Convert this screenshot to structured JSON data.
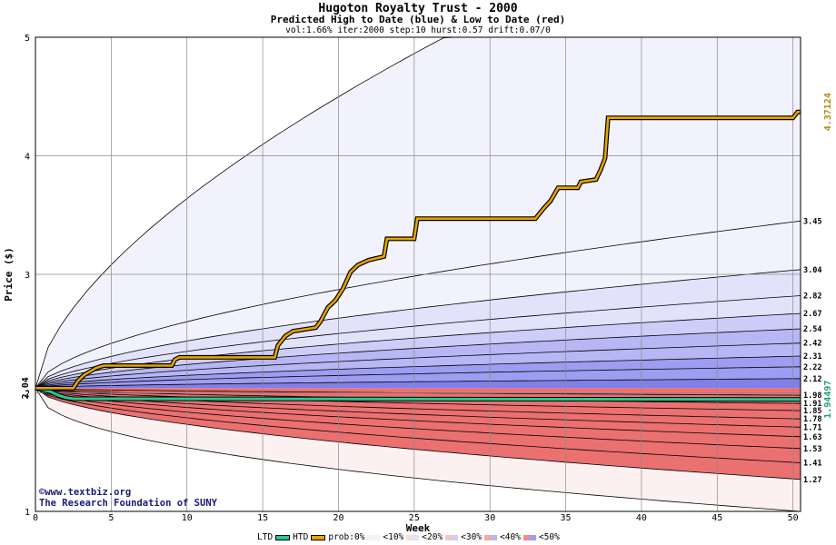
{
  "chart_data": {
    "type": "area",
    "title": "Hugoton Royalty Trust - 2000",
    "subtitle": "Predicted High to Date (blue) &  Low to Date (red)",
    "params": "vol:1.66% iter:2000 step:10 hurst:0.57 drift:0.07/0",
    "xlabel": "Week",
    "ylabel": "Price ($)",
    "xlim": [
      0,
      50.5
    ],
    "ylim": [
      1,
      5
    ],
    "x_ticks": [
      "0",
      "5",
      "10",
      "15",
      "20",
      "25",
      "30",
      "35",
      "40",
      "45",
      "50"
    ],
    "y_ticks": [
      "1",
      "2",
      "3",
      "4",
      "5"
    ],
    "start_price": "2.04",
    "grid": true,
    "high_band_levels": [
      {
        "label": "3.45",
        "value": 3.45
      },
      {
        "label": "3.04",
        "value": 3.04
      },
      {
        "label": "2.82",
        "value": 2.82
      },
      {
        "label": "2.67",
        "value": 2.67
      },
      {
        "label": "2.54",
        "value": 2.54
      },
      {
        "label": "2.42",
        "value": 2.42
      },
      {
        "label": "2.31",
        "value": 2.31
      },
      {
        "label": "2.22",
        "value": 2.22
      },
      {
        "label": "2.12",
        "value": 2.12
      }
    ],
    "low_band_levels": [
      {
        "label": "1.98",
        "value": 1.98
      },
      {
        "label": "1.91",
        "value": 1.91
      },
      {
        "label": "1.85",
        "value": 1.85
      },
      {
        "label": "1.78",
        "value": 1.78
      },
      {
        "label": "1.71",
        "value": 1.71
      },
      {
        "label": "1.63",
        "value": 1.63
      },
      {
        "label": "1.53",
        "value": 1.53
      },
      {
        "label": "1.41",
        "value": 1.41
      },
      {
        "label": "1.27",
        "value": 1.27
      }
    ],
    "outer_high": 5.0,
    "outer_low": 1.0,
    "htd_series": {
      "name": "HTD",
      "final_label": "4.37124",
      "points": [
        [
          0,
          2.04
        ],
        [
          2.5,
          2.04
        ],
        [
          2.8,
          2.1
        ],
        [
          3.2,
          2.15
        ],
        [
          3.6,
          2.18
        ],
        [
          4.0,
          2.21
        ],
        [
          4.5,
          2.23
        ],
        [
          9,
          2.23
        ],
        [
          9.2,
          2.28
        ],
        [
          9.5,
          2.3
        ],
        [
          15.8,
          2.3
        ],
        [
          16,
          2.4
        ],
        [
          16.5,
          2.48
        ],
        [
          17,
          2.52
        ],
        [
          18.5,
          2.55
        ],
        [
          18.8,
          2.6
        ],
        [
          19.3,
          2.72
        ],
        [
          19.8,
          2.78
        ],
        [
          20.3,
          2.88
        ],
        [
          20.8,
          3.02
        ],
        [
          21.3,
          3.08
        ],
        [
          22,
          3.12
        ],
        [
          23,
          3.15
        ],
        [
          23.2,
          3.3
        ],
        [
          25,
          3.3
        ],
        [
          25.2,
          3.47
        ],
        [
          33,
          3.47
        ],
        [
          33.5,
          3.55
        ],
        [
          34,
          3.62
        ],
        [
          34.5,
          3.73
        ],
        [
          35.8,
          3.73
        ],
        [
          36,
          3.78
        ],
        [
          37,
          3.8
        ],
        [
          37.3,
          3.88
        ],
        [
          37.6,
          3.98
        ],
        [
          37.8,
          4.32
        ],
        [
          50,
          4.32
        ],
        [
          50.3,
          4.37
        ],
        [
          50.5,
          4.37
        ]
      ]
    },
    "ltd_series": {
      "name": "LTD",
      "final_label": "1.94497",
      "points": [
        [
          0,
          2.04
        ],
        [
          1,
          2.01
        ],
        [
          1.5,
          1.98
        ],
        [
          2,
          1.96
        ],
        [
          2.5,
          1.95
        ],
        [
          50.5,
          1.945
        ]
      ]
    },
    "legend": {
      "ltd_label": "LTD",
      "htd_label": "HTD",
      "prob_label": "prob:0%",
      "items": [
        "<10%",
        "<20%",
        "<30%",
        "<40%",
        "<50%"
      ]
    },
    "colors": {
      "htd": "#e8a400",
      "ltd": "#28c890",
      "final_high": "#b8860b",
      "final_low": "#1e9e6e",
      "blue_bands": [
        "#f2f2fd",
        "#e2e2fb",
        "#cdcdf9",
        "#b7b7f5",
        "#9d9df1",
        "#8080ea"
      ],
      "red_bands": [
        "#fdf0f0",
        "#fbdcdc",
        "#f8c4c4",
        "#f5a8a8",
        "#f08c8c",
        "#eb7070"
      ]
    }
  },
  "watermark": {
    "line1": "©www.textbiz.org",
    "line2": "The Research Foundation of SUNY"
  }
}
